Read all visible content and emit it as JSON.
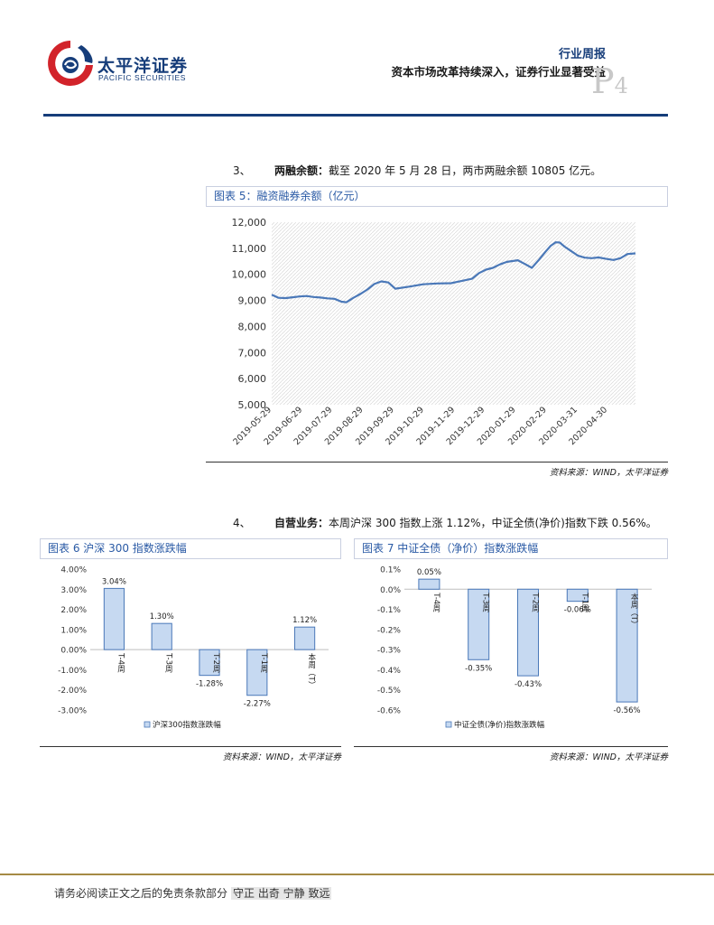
{
  "header": {
    "logo_cn": "太平洋证券",
    "logo_en": "PACIFIC SECURITIES",
    "report_type": "行业周报",
    "report_title": "资本市场改革持续深入，证券行业显著受益",
    "page_letter": "P",
    "page_number": "4",
    "colors": {
      "brand_blue": "#163d7a",
      "logo_red": "#d2232a",
      "accent_gold": "#a58a45"
    }
  },
  "section3": {
    "number": "3、",
    "label": "两融余额：",
    "text": "截至 2020 年 5 月 28 日，两市两融余额 10805 亿元。"
  },
  "figure5": {
    "title": "图表 5：融资融券余额（亿元）",
    "source": "资料来源：WIND，太平洋证券"
  },
  "section4": {
    "number": "4、",
    "label": "自营业务：",
    "text": "本周沪深 300 指数上涨 1.12%，中证全债(净价)指数下跌 0.56%。"
  },
  "figure6": {
    "title": "图表 6  沪深 300 指数涨跌幅",
    "source": "资料来源：WIND，太平洋证券"
  },
  "figure7": {
    "title": "图表 7  中证全债（净价）指数涨跌幅",
    "source": "资料来源：WIND，太平洋证券"
  },
  "footer": {
    "disclaimer": "请务必阅读正文之后的免责条款部分",
    "motto": "守正 出奇 宁静 致远"
  },
  "chart_data": [
    {
      "type": "line",
      "title": "融资融券余额（亿元）",
      "ylim": [
        5000,
        12000
      ],
      "yticks": [
        "5,000",
        "6,000",
        "7,000",
        "8,000",
        "9,000",
        "10,000",
        "11,000",
        "12,000"
      ],
      "xticks": [
        "2019-05-29",
        "2019-06-29",
        "2019-07-29",
        "2019-08-29",
        "2019-09-29",
        "2019-10-29",
        "2019-11-29",
        "2019-12-29",
        "2020-01-29",
        "2020-02-29",
        "2020-03-31",
        "2020-04-30"
      ],
      "line_color": "#4a78b8",
      "grid": "hatched",
      "points": [
        [
          "2019-05-29",
          9220
        ],
        [
          "2019-06-05",
          9100
        ],
        [
          "2019-06-12",
          9090
        ],
        [
          "2019-06-19",
          9120
        ],
        [
          "2019-06-26",
          9150
        ],
        [
          "2019-07-03",
          9170
        ],
        [
          "2019-07-10",
          9130
        ],
        [
          "2019-07-17",
          9110
        ],
        [
          "2019-07-24",
          9080
        ],
        [
          "2019-07-31",
          9060
        ],
        [
          "2019-08-07",
          8950
        ],
        [
          "2019-08-12",
          8930
        ],
        [
          "2019-08-19",
          9100
        ],
        [
          "2019-08-26",
          9250
        ],
        [
          "2019-09-02",
          9420
        ],
        [
          "2019-09-09",
          9630
        ],
        [
          "2019-09-16",
          9730
        ],
        [
          "2019-09-23",
          9690
        ],
        [
          "2019-09-30",
          9450
        ],
        [
          "2019-10-14",
          9530
        ],
        [
          "2019-10-28",
          9620
        ],
        [
          "2019-11-11",
          9650
        ],
        [
          "2019-11-25",
          9660
        ],
        [
          "2019-12-02",
          9720
        ],
        [
          "2019-12-16",
          9830
        ],
        [
          "2019-12-23",
          10050
        ],
        [
          "2019-12-30",
          10180
        ],
        [
          "2020-01-06",
          10250
        ],
        [
          "2020-01-13",
          10380
        ],
        [
          "2020-01-20",
          10480
        ],
        [
          "2020-01-31",
          10540
        ],
        [
          "2020-02-07",
          10400
        ],
        [
          "2020-02-14",
          10250
        ],
        [
          "2020-02-21",
          10550
        ],
        [
          "2020-02-28",
          10880
        ],
        [
          "2020-03-04",
          11100
        ],
        [
          "2020-03-09",
          11230
        ],
        [
          "2020-03-13",
          11220
        ],
        [
          "2020-03-18",
          11060
        ],
        [
          "2020-03-25",
          10880
        ],
        [
          "2020-03-31",
          10720
        ],
        [
          "2020-04-07",
          10640
        ],
        [
          "2020-04-14",
          10620
        ],
        [
          "2020-04-21",
          10650
        ],
        [
          "2020-04-28",
          10600
        ],
        [
          "2020-05-06",
          10550
        ],
        [
          "2020-05-13",
          10620
        ],
        [
          "2020-05-20",
          10780
        ],
        [
          "2020-05-28",
          10805
        ]
      ]
    },
    {
      "type": "bar",
      "title": "沪深 300 指数涨跌幅",
      "categories": [
        "T-4周",
        "T-3周",
        "T-2周",
        "T-1周",
        "本周（T）"
      ],
      "series": [
        {
          "name": "沪深300指数涨跌幅",
          "values": [
            3.04,
            1.3,
            -1.28,
            -2.27,
            1.12
          ]
        }
      ],
      "value_labels": [
        "3.04%",
        "1.30%",
        "-1.28%",
        "-2.27%",
        "1.12%"
      ],
      "ylim": [
        -3,
        4
      ],
      "yticks": [
        "-3.00%",
        "-2.00%",
        "-1.00%",
        "0.00%",
        "1.00%",
        "2.00%",
        "3.00%",
        "4.00%"
      ],
      "bar_color": "#c6d9f1",
      "bar_edge": "#4a78b8",
      "legend": "bottom"
    },
    {
      "type": "bar",
      "title": "中证全债（净价）指数涨跌幅",
      "categories": [
        "T-4周",
        "T-3周",
        "T-2周",
        "T-1周",
        "本周（T）"
      ],
      "series": [
        {
          "name": "中证全债(净价)指数涨跌幅",
          "values": [
            0.05,
            -0.35,
            -0.43,
            -0.06,
            -0.56
          ]
        }
      ],
      "value_labels": [
        "0.05%",
        "-0.35%",
        "-0.43%",
        "-0.06%",
        "-0.56%"
      ],
      "ylim": [
        -0.6,
        0.1
      ],
      "yticks": [
        "-0.6%",
        "-0.5%",
        "-0.4%",
        "-0.3%",
        "-0.2%",
        "-0.1%",
        "0.0%",
        "0.1%"
      ],
      "bar_color": "#c6d9f1",
      "bar_edge": "#4a78b8",
      "legend": "bottom"
    }
  ]
}
